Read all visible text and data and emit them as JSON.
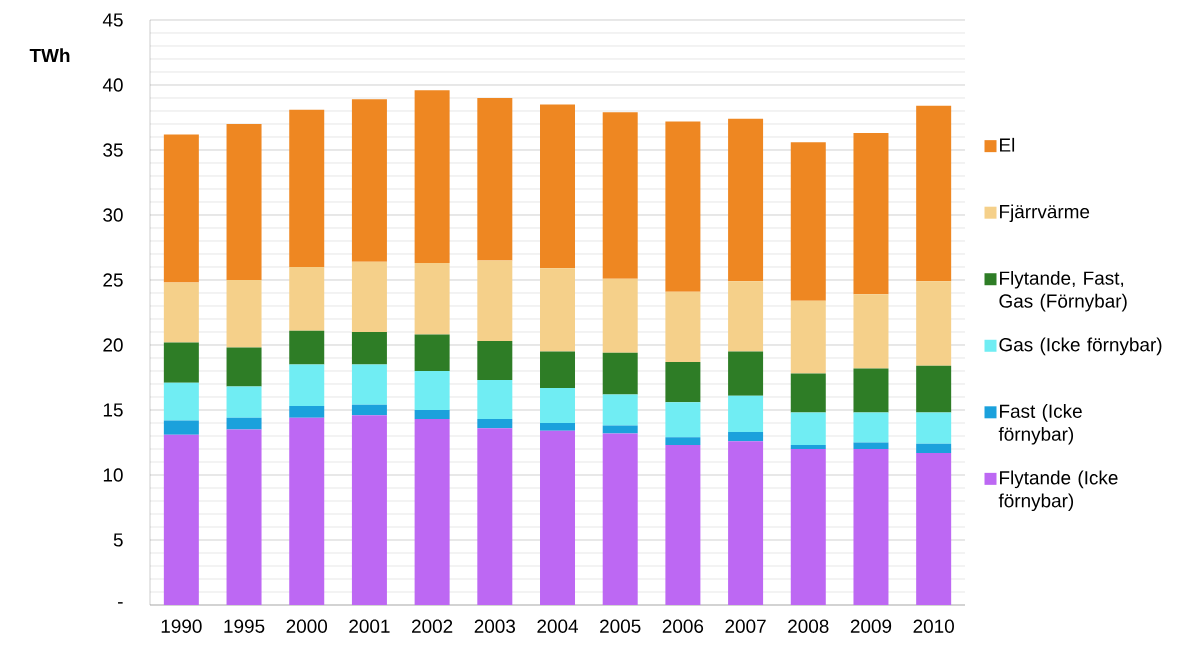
{
  "chart_data": {
    "type": "bar",
    "stacked": true,
    "ylabel": "TWh",
    "categories": [
      "1990",
      "1995",
      "2000",
      "2001",
      "2002",
      "2003",
      "2004",
      "2005",
      "2006",
      "2007",
      "2008",
      "2009",
      "2010"
    ],
    "series": [
      {
        "name": "Flytande (Icke förnybar)",
        "color": "#bd68f3",
        "values": [
          13.1,
          13.5,
          14.4,
          14.6,
          14.3,
          13.6,
          13.4,
          13.2,
          12.3,
          12.6,
          12.0,
          12.0,
          11.7
        ]
      },
      {
        "name": "Fast (Icke förnybar)",
        "color": "#1ba1dc",
        "values": [
          1.1,
          0.9,
          0.9,
          0.8,
          0.7,
          0.7,
          0.6,
          0.6,
          0.6,
          0.7,
          0.3,
          0.5,
          0.7
        ]
      },
      {
        "name": "Gas (Icke förnybar)",
        "color": "#70edf3",
        "values": [
          2.9,
          2.4,
          3.2,
          3.1,
          3.0,
          3.0,
          2.7,
          2.4,
          2.7,
          2.8,
          2.5,
          2.3,
          2.4
        ]
      },
      {
        "name": "Flytande, Fast, Gas (Förnybar)",
        "color": "#2e7d26",
        "values": [
          3.1,
          3.0,
          2.6,
          2.5,
          2.8,
          3.0,
          2.8,
          3.2,
          3.1,
          3.4,
          3.0,
          3.4,
          3.6
        ]
      },
      {
        "name": "Fjärrvärme",
        "color": "#f5d08a",
        "values": [
          4.6,
          5.2,
          4.9,
          5.4,
          5.5,
          6.2,
          6.4,
          5.7,
          5.4,
          5.4,
          5.6,
          5.7,
          6.5
        ]
      },
      {
        "name": "El",
        "color": "#ee8722",
        "values": [
          11.4,
          12.0,
          12.1,
          12.5,
          13.3,
          12.5,
          12.6,
          12.8,
          13.1,
          12.5,
          12.2,
          12.4,
          13.5
        ]
      }
    ],
    "ylim": [
      0,
      45
    ],
    "yticks": [
      {
        "value": 0,
        "label": "-"
      },
      5,
      10,
      15,
      20,
      25,
      30,
      35,
      40,
      45
    ],
    "grid": "y",
    "legend": "right"
  }
}
